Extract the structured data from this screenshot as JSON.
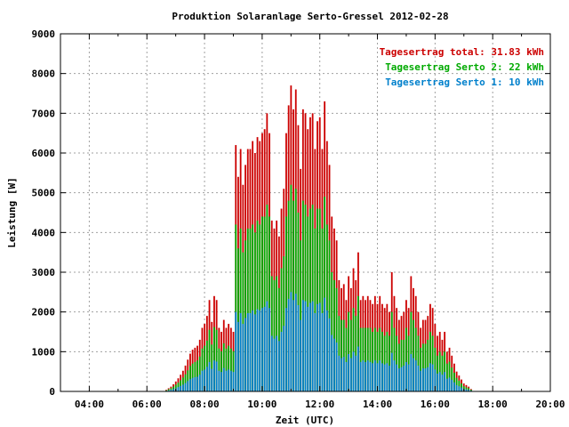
{
  "chart_data": {
    "type": "bar",
    "title": "Produktion Solaranlage Serto-Gressel 2012-02-28",
    "xlabel": "Zeit (UTC)",
    "ylabel": "Leistung [W]",
    "xlim": [
      3.0,
      20.0
    ],
    "ylim": [
      0,
      9000
    ],
    "xticks": [
      4,
      6,
      8,
      10,
      12,
      14,
      16,
      18,
      20
    ],
    "xtick_labels": [
      "04:00",
      "06:00",
      "08:00",
      "10:00",
      "12:00",
      "14:00",
      "16:00",
      "18:00",
      "20:00"
    ],
    "yticks": [
      0,
      1000,
      2000,
      3000,
      4000,
      5000,
      6000,
      7000,
      8000,
      9000
    ],
    "ytick_labels": [
      "0",
      "1000",
      "2000",
      "3000",
      "4000",
      "5000",
      "6000",
      "7000",
      "8000",
      "9000"
    ],
    "grid": true,
    "legend_position": "top-right",
    "legend": [
      {
        "text": "Tagesertrag total: 31.83 kWh",
        "color": "#cc0000"
      },
      {
        "text": "Tagesertrag Serto 2: 22 kWh",
        "color": "#00aa00"
      },
      {
        "text": "Tagesertrag Serto 1: 10 kWh",
        "color": "#0080cc"
      }
    ],
    "x_start": 6.67,
    "x_step": 0.0833,
    "series": [
      {
        "name": "Tagesertrag total",
        "color": "#cc0000",
        "values": [
          40,
          80,
          120,
          180,
          250,
          330,
          420,
          520,
          650,
          800,
          950,
          1050,
          1100,
          1150,
          1300,
          1600,
          1700,
          1900,
          2300,
          1750,
          2400,
          2300,
          1600,
          1500,
          1800,
          1600,
          1700,
          1600,
          1500,
          6200,
          5400,
          6100,
          5200,
          5700,
          6100,
          6100,
          6300,
          6000,
          6400,
          6300,
          6500,
          6600,
          7000,
          6500,
          4300,
          4100,
          4300,
          3900,
          4600,
          5100,
          6500,
          7200,
          7700,
          7100,
          7600,
          6700,
          5600,
          7100,
          7000,
          6600,
          6900,
          7000,
          6100,
          6800,
          6900,
          6100,
          7300,
          6300,
          5700,
          4400,
          4100,
          3800,
          2800,
          2600,
          2700,
          2300,
          2900,
          2600,
          3100,
          2800,
          3500,
          2300,
          2400,
          2300,
          2400,
          2300,
          2200,
          2400,
          2200,
          2400,
          2200,
          2100,
          2200,
          2000,
          3000,
          2400,
          2100,
          1800,
          1900,
          2000,
          2300,
          2100,
          2900,
          2600,
          2400,
          2000,
          1600,
          1800,
          1800,
          1900,
          2200,
          2100,
          1700,
          1400,
          1500,
          1300,
          1500,
          1000,
          1100,
          900,
          700,
          500,
          400,
          300,
          200,
          160,
          120,
          60
        ]
      },
      {
        "name": "Tagesertrag Serto 2",
        "color": "#00aa00",
        "values": [
          25,
          55,
          80,
          120,
          170,
          220,
          280,
          350,
          430,
          530,
          640,
          700,
          740,
          780,
          880,
          1080,
          1150,
          1280,
          1550,
          1180,
          1620,
          1550,
          1080,
          1010,
          1210,
          1080,
          1150,
          1080,
          1010,
          4200,
          3600,
          4100,
          3500,
          3800,
          4100,
          4100,
          4200,
          4000,
          4300,
          4200,
          4400,
          4400,
          4700,
          4400,
          2900,
          2800,
          2900,
          2600,
          3100,
          3400,
          4400,
          4800,
          5200,
          4800,
          5100,
          4500,
          3800,
          4800,
          4700,
          4400,
          4600,
          4700,
          4100,
          4600,
          4600,
          4100,
          4900,
          4200,
          3800,
          3000,
          2800,
          2600,
          1900,
          1800,
          1800,
          1600,
          2000,
          1800,
          2100,
          1900,
          2400,
          1600,
          1600,
          1600,
          1600,
          1600,
          1500,
          1600,
          1500,
          1600,
          1500,
          1400,
          1500,
          1400,
          2000,
          1600,
          1400,
          1200,
          1300,
          1300,
          1600,
          1400,
          2000,
          1800,
          1600,
          1400,
          1100,
          1200,
          1200,
          1300,
          1500,
          1400,
          1100,
          900,
          1000,
          900,
          1000,
          700,
          750,
          600,
          470,
          340,
          270,
          200,
          130,
          100,
          80,
          40
        ]
      },
      {
        "name": "Tagesertrag Serto 1",
        "color": "#0080cc",
        "values": [
          15,
          25,
          40,
          60,
          80,
          110,
          140,
          170,
          210,
          260,
          310,
          340,
          360,
          370,
          420,
          520,
          550,
          620,
          740,
          570,
          780,
          750,
          520,
          490,
          590,
          520,
          550,
          520,
          490,
          2000,
          1750,
          1970,
          1700,
          1850,
          1970,
          1970,
          2040,
          1940,
          2070,
          2040,
          2100,
          2130,
          2270,
          2100,
          1400,
          1330,
          1400,
          1270,
          1500,
          1650,
          2100,
          2330,
          2500,
          2300,
          2460,
          2170,
          1800,
          2300,
          2270,
          2130,
          2230,
          2270,
          1970,
          2200,
          2230,
          1970,
          2360,
          2040,
          1840,
          1420,
          1330,
          1230,
          900,
          840,
          870,
          740,
          940,
          840,
          1000,
          900,
          1130,
          740,
          780,
          740,
          780,
          740,
          710,
          780,
          710,
          780,
          710,
          680,
          710,
          650,
          970,
          780,
          680,
          580,
          610,
          650,
          740,
          680,
          940,
          840,
          780,
          650,
          520,
          580,
          580,
          610,
          710,
          680,
          550,
          450,
          490,
          420,
          490,
          320,
          350,
          290,
          230,
          160,
          130,
          100,
          65,
          50,
          40,
          20
        ]
      }
    ]
  }
}
